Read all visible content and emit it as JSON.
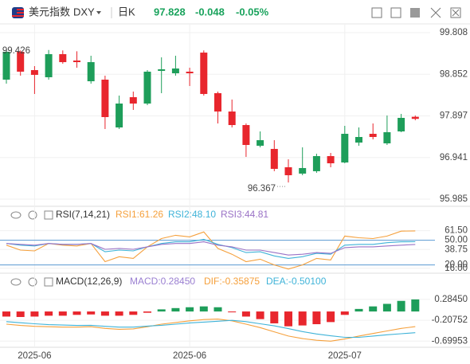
{
  "header": {
    "name": "美元指数",
    "symbol": "DXY",
    "period": "日K",
    "price": 97.828,
    "change": -0.048,
    "change_pct": "-0.05%",
    "color": "#1aa35d"
  },
  "chart_data": [
    {
      "type": "candlestick",
      "up_color": "#1e9e5a",
      "down_color": "#e8262d",
      "categories": [
        null,
        null,
        "2025-06",
        null,
        null,
        null,
        null,
        null,
        null,
        null,
        null,
        null,
        null,
        "2025-06",
        null,
        null,
        null,
        null,
        null,
        null,
        null,
        null,
        null,
        null,
        "2025-07",
        null,
        null,
        null,
        null,
        null
      ],
      "candles": {
        "open": [
          98.729,
          99.369,
          98.948,
          98.784,
          99.314,
          99.168,
          98.692,
          98.729,
          97.631,
          98.326,
          98.18,
          98.93,
          98.875,
          98.912,
          99.35,
          98.418,
          97.997,
          97.686,
          97.211,
          97.138,
          96.717,
          96.571,
          96.626,
          96.973,
          96.827,
          97.284,
          97.485,
          97.266,
          97.54,
          97.876
        ],
        "high": [
          99.426,
          99.4,
          99.04,
          99.41,
          99.4,
          99.38,
          99.278,
          98.82,
          98.363,
          98.455,
          98.948,
          99.241,
          99.278,
          99.003,
          99.4,
          98.455,
          98.272,
          97.723,
          97.54,
          97.339,
          96.9,
          97.174,
          97.028,
          97.046,
          97.668,
          97.631,
          97.723,
          97.906,
          97.942,
          97.906
        ],
        "low": [
          98.637,
          98.82,
          98.4,
          98.729,
          99.095,
          99.003,
          98.637,
          97.595,
          97.595,
          98.034,
          98.144,
          98.418,
          98.82,
          98.583,
          98.363,
          97.723,
          97.631,
          96.955,
          97.174,
          96.626,
          96.367,
          96.534,
          96.589,
          96.717,
          96.808,
          97.211,
          97.357,
          97.229,
          97.522,
          97.796
        ],
        "close": [
          99.369,
          98.912,
          98.839,
          99.314,
          99.131,
          99.131,
          99.131,
          97.869,
          98.18,
          98.18,
          98.912,
          98.967,
          98.985,
          98.875,
          98.4,
          97.997,
          97.686,
          97.229,
          97.339,
          96.68,
          96.534,
          96.699,
          96.973,
          96.808,
          97.485,
          97.412,
          97.412,
          97.522,
          97.851,
          97.828
        ]
      },
      "ylim": [
        95.985,
        99.808
      ],
      "yticks": [
        95.985,
        96.941,
        97.897,
        98.852,
        99.808
      ],
      "grid": true
    },
    {
      "type": "line",
      "title": "RSI(7,14,21)",
      "ylim": [
        10,
        66
      ],
      "yticks": [
        {
          "value": 61.5,
          "label": "61.50"
        },
        {
          "value": 50,
          "label": "50.00"
        },
        38.75,
        {
          "value": 16,
          "label": "16.00"
        },
        {
          "value": 20,
          "label": "20.00"
        }
      ],
      "ref_lines": [
        50,
        20
      ],
      "ref_color": "#5b9bd5",
      "series": [
        {
          "name": "RSI1:61.26",
          "color": "#f5a03c",
          "values": [
            44,
            38,
            37,
            46,
            44,
            43,
            46,
            24,
            30,
            28,
            42,
            52,
            56,
            54,
            60,
            40,
            33,
            24,
            27,
            20,
            15,
            20,
            28,
            26,
            55,
            53,
            52,
            55,
            61,
            61.26
          ]
        },
        {
          "name": "RSI2:48.10",
          "color": "#3fb3d8",
          "values": [
            46,
            44,
            43,
            46,
            45,
            45,
            46,
            36,
            38,
            37,
            42,
            46,
            48,
            48,
            51,
            45,
            41,
            35,
            36,
            31,
            28,
            30,
            34,
            33,
            44,
            45,
            45,
            47,
            48,
            48.1
          ]
        },
        {
          "name": "RSI3:44.81",
          "color": "#9a72c6",
          "values": [
            46,
            45,
            44,
            46,
            45,
            45,
            46,
            39,
            40,
            39,
            42,
            45,
            46,
            46,
            48,
            44,
            42,
            38,
            38,
            35,
            32,
            33,
            35,
            34,
            41,
            42,
            42,
            43,
            44,
            44.81
          ]
        }
      ]
    },
    {
      "type": "macd",
      "title": "MACD(12,26,9)",
      "ylim": [
        -0.92,
        0.49
      ],
      "yticks": [
        {
          "value": 0.2845,
          "label": "0.28450"
        },
        -0.20752,
        -0.69953
      ],
      "pos_color": "#1e9e5a",
      "neg_color": "#e8262d",
      "series": [
        {
          "name": "MACD:0.28450",
          "kind": "bar",
          "color": "#9a7fd1",
          "values": [
            -0.12,
            -0.13,
            -0.12,
            -0.1,
            -0.1,
            -0.08,
            -0.07,
            -0.1,
            -0.1,
            -0.08,
            -0.03,
            0.05,
            0.08,
            0.1,
            0.12,
            0.1,
            -0.02,
            -0.12,
            -0.18,
            -0.28,
            -0.35,
            -0.33,
            -0.3,
            -0.25,
            -0.08,
            0.06,
            0.12,
            0.18,
            0.25,
            0.2845
          ]
        },
        {
          "name": "DIF:-0.35875",
          "kind": "line",
          "color": "#f5a03c",
          "values": [
            -0.3,
            -0.33,
            -0.35,
            -0.36,
            -0.37,
            -0.37,
            -0.36,
            -0.4,
            -0.42,
            -0.41,
            -0.36,
            -0.3,
            -0.26,
            -0.22,
            -0.19,
            -0.18,
            -0.22,
            -0.3,
            -0.38,
            -0.48,
            -0.58,
            -0.64,
            -0.68,
            -0.7,
            -0.65,
            -0.58,
            -0.52,
            -0.46,
            -0.4,
            -0.35875
          ]
        },
        {
          "name": "DEA:-0.50100",
          "kind": "line",
          "color": "#3fb3d8",
          "values": [
            -0.24,
            -0.265,
            -0.29,
            -0.31,
            -0.32,
            -0.33,
            -0.325,
            -0.35,
            -0.37,
            -0.37,
            -0.345,
            -0.325,
            -0.3,
            -0.27,
            -0.25,
            -0.23,
            -0.21,
            -0.24,
            -0.29,
            -0.34,
            -0.405,
            -0.475,
            -0.53,
            -0.575,
            -0.61,
            -0.61,
            -0.58,
            -0.55,
            -0.525,
            -0.501
          ]
        }
      ]
    }
  ]
}
